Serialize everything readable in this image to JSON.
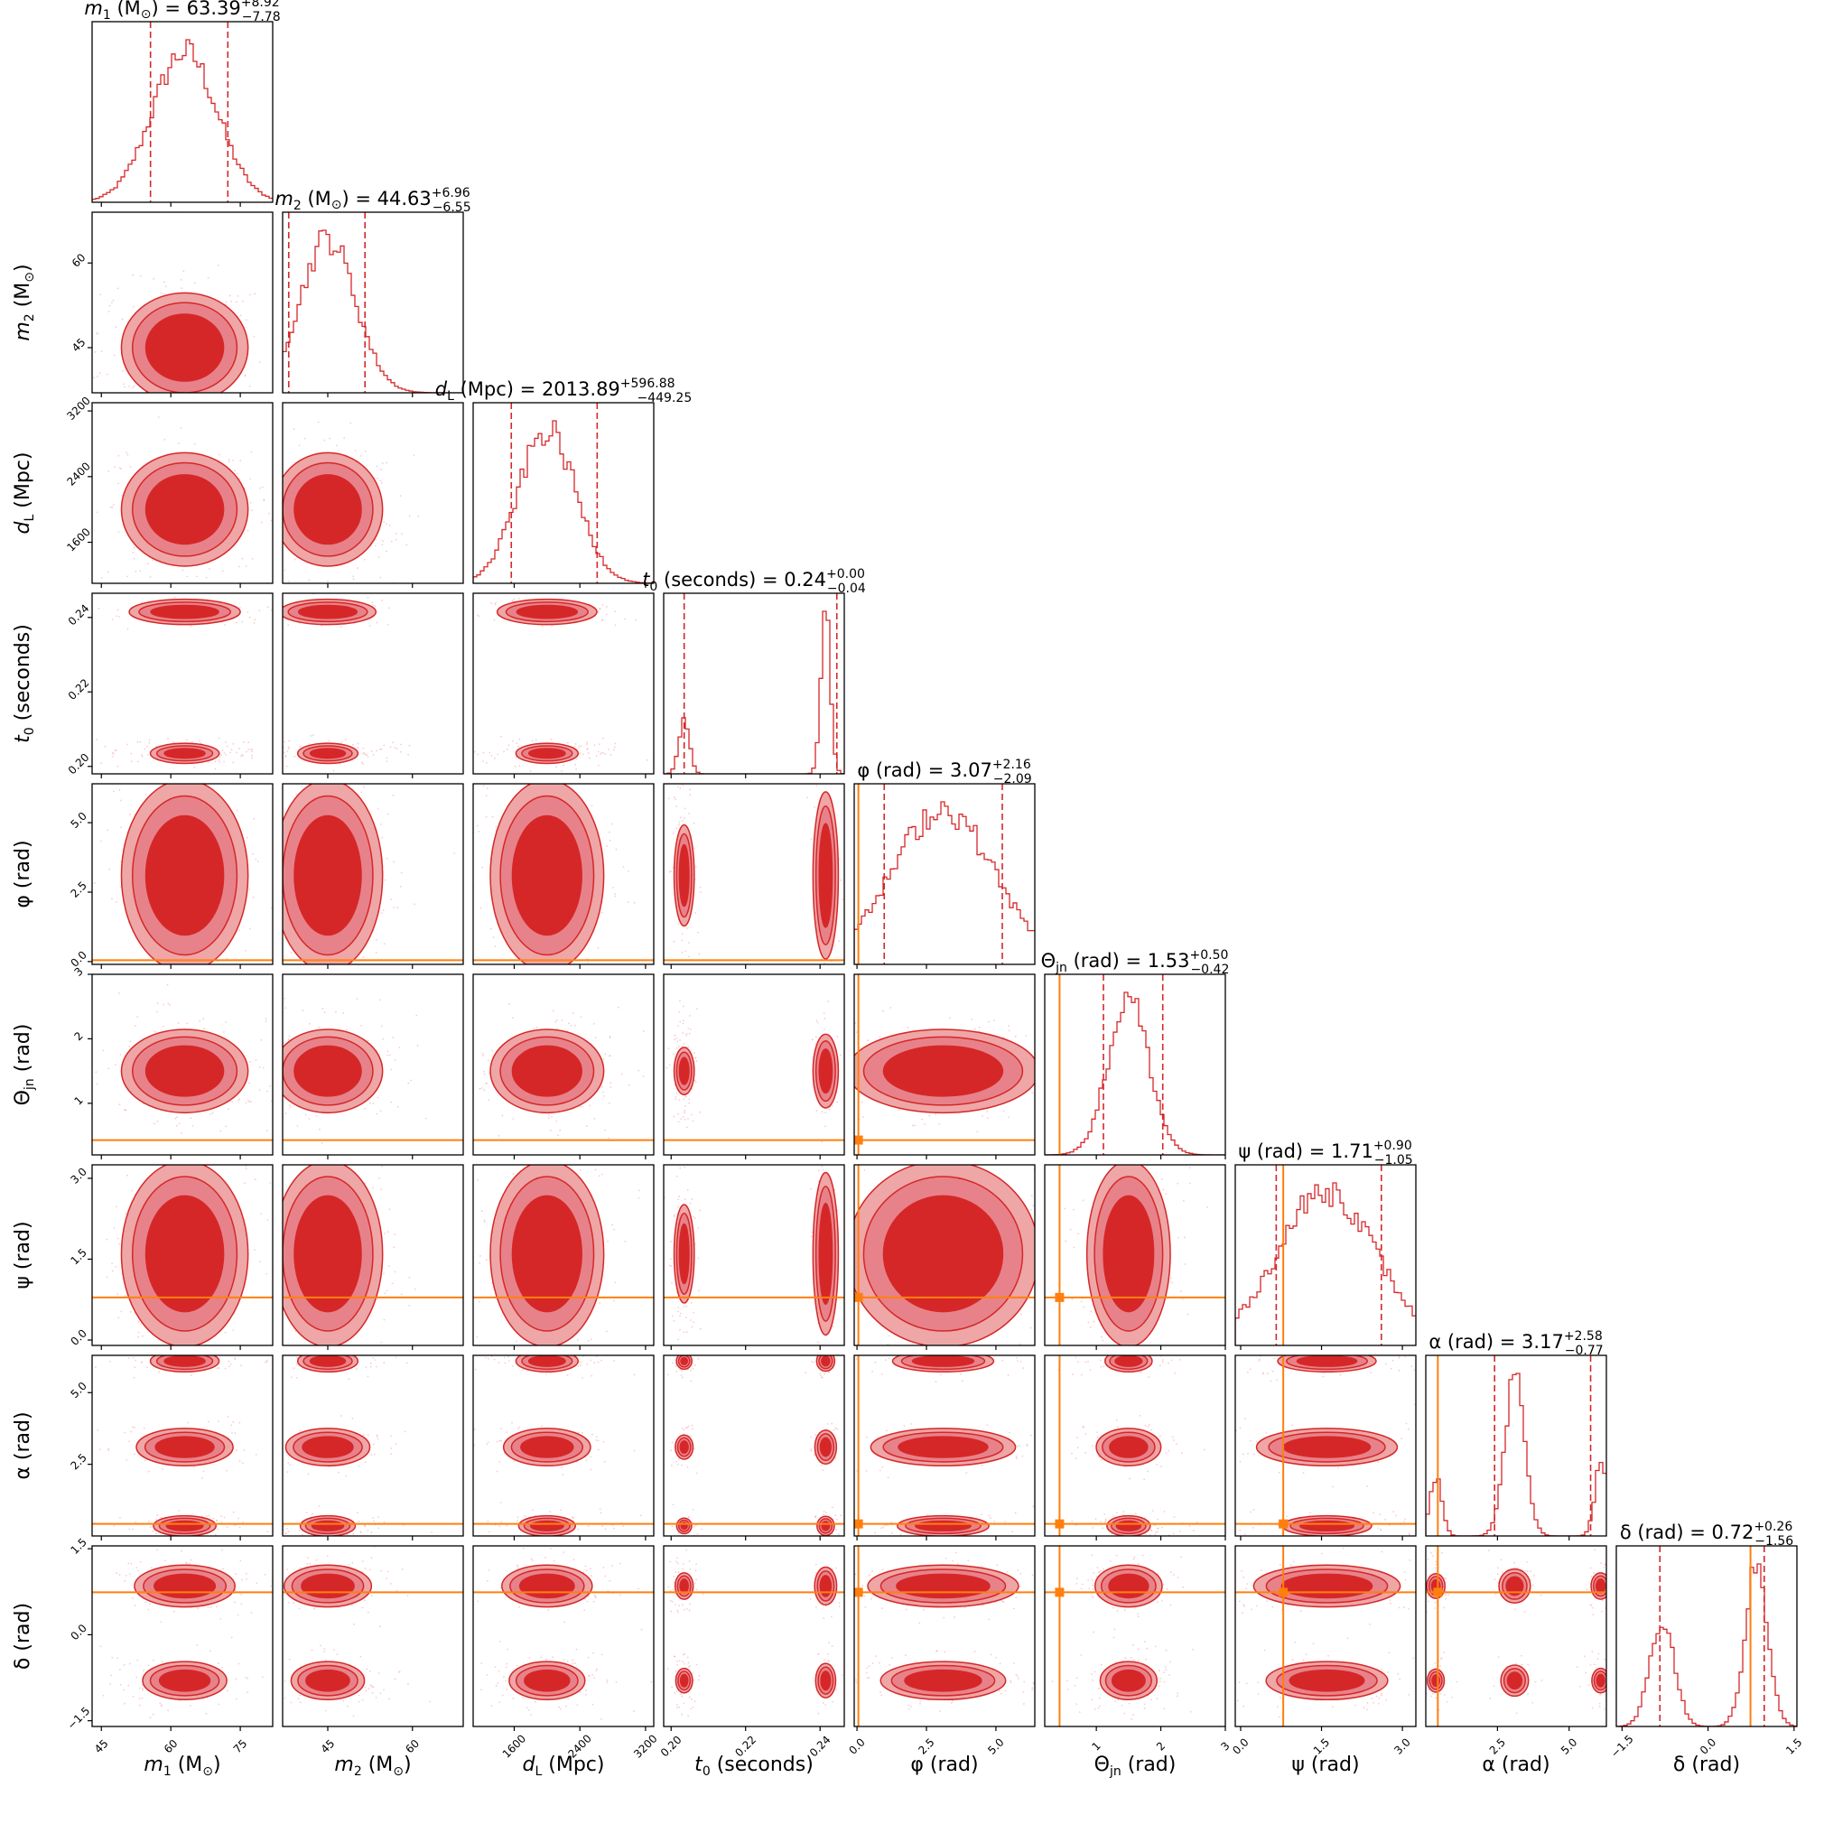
{
  "chart_data": {
    "type": "corner",
    "description_colors": {
      "posterior": "#d62728",
      "posterior_light": "#eea6a7",
      "truth": "#ff7f0e",
      "frame": "#000000"
    },
    "parameters": [
      {
        "key": "m1",
        "label": "m_1 (M_⊙)",
        "sym": "m",
        "sub": "1",
        "unit": "M",
        "sun": true,
        "range": [
          43,
          82
        ],
        "ticks": [
          45,
          60,
          75
        ],
        "ticklabels": [
          "45",
          "60",
          "75"
        ],
        "title": {
          "value": "63.39",
          "plus": "+8.92",
          "minus": "−7.78"
        },
        "quantiles": [
          55.61,
          72.31
        ]
      },
      {
        "key": "m2",
        "label": "m_2 (M_⊙)",
        "sym": "m",
        "sub": "2",
        "unit": "M",
        "sun": true,
        "range": [
          37,
          69
        ],
        "ticks": [
          45,
          60
        ],
        "ticklabels": [
          "45",
          "60"
        ],
        "title": {
          "value": "44.63",
          "plus": "+6.96",
          "minus": "−6.55"
        },
        "quantiles": [
          38.08,
          51.59
        ]
      },
      {
        "key": "dL",
        "label": "d_L (Mpc)",
        "sym": "d",
        "sub": "L",
        "unit": "Mpc",
        "range": [
          1100,
          3300
        ],
        "ticks": [
          1600,
          2400,
          3200
        ],
        "ticklabels": [
          "1600",
          "2400",
          "3200"
        ],
        "title": {
          "value": "2013.89",
          "plus": "+596.88",
          "minus": "−449.25"
        },
        "quantiles": [
          1564.64,
          2610.77
        ]
      },
      {
        "key": "t0",
        "label": "t_0 (seconds)",
        "sym": "t",
        "sub": "0",
        "unit": "seconds",
        "range": [
          0.198,
          0.2465
        ],
        "ticks": [
          0.2,
          0.22,
          0.24
        ],
        "ticklabels": [
          "0.20",
          "0.22",
          "0.24"
        ],
        "title": {
          "value": "0.24",
          "plus": "+0.00",
          "minus": "−0.04"
        },
        "quantiles": [
          0.2035,
          0.2445
        ]
      },
      {
        "key": "phi",
        "label": "φ (rad)",
        "sym": "φ",
        "sub": "",
        "unit": "rad",
        "range": [
          -0.1,
          6.4
        ],
        "ticks": [
          0.0,
          2.5,
          5.0
        ],
        "ticklabels": [
          "0.0",
          "2.5",
          "5.0"
        ],
        "title": {
          "value": "3.07",
          "plus": "+2.16",
          "minus": "−2.09"
        },
        "quantiles": [
          0.98,
          5.23
        ],
        "truth": 0.05
      },
      {
        "key": "theta",
        "label": "Θ_jn (rad)",
        "sym": "Θ",
        "sub": "jn",
        "unit": "rad",
        "range": [
          0.2,
          3.0
        ],
        "ticks": [
          1,
          2,
          3
        ],
        "ticklabels": [
          "1",
          "2",
          "3"
        ],
        "title": {
          "value": "1.53",
          "plus": "+0.50",
          "minus": "−0.42"
        },
        "quantiles": [
          1.11,
          2.03
        ],
        "truth": 0.43
      },
      {
        "key": "psi",
        "label": "ψ (rad)",
        "sym": "ψ",
        "sub": "",
        "unit": "rad",
        "range": [
          -0.1,
          3.25
        ],
        "ticks": [
          0.0,
          1.5,
          3.0
        ],
        "ticklabels": [
          "0.0",
          "1.5",
          "3.0"
        ],
        "title": {
          "value": "1.71",
          "plus": "+0.90",
          "minus": "−1.05"
        },
        "quantiles": [
          0.66,
          2.61
        ],
        "truth": 0.79
      },
      {
        "key": "alpha",
        "label": "α (rad)",
        "sym": "α",
        "sub": "",
        "unit": "rad",
        "range": [
          0.0,
          6.3
        ],
        "ticks": [
          2.5,
          5.0
        ],
        "ticklabels": [
          "2.5",
          "5.0"
        ],
        "title": {
          "value": "3.17",
          "plus": "+2.58",
          "minus": "−0.77"
        },
        "quantiles": [
          2.4,
          5.75
        ],
        "truth": 0.42
      },
      {
        "key": "delta",
        "label": "δ (rad)",
        "sym": "δ",
        "sub": "",
        "unit": "rad",
        "range": [
          -1.6,
          1.55
        ],
        "ticks": [
          -1.5,
          0.0,
          1.5
        ],
        "ticklabels": [
          "−1.5",
          "0.0",
          "1.5"
        ],
        "title": {
          "value": "0.72",
          "plus": "+0.26",
          "minus": "−1.56"
        },
        "quantiles": [
          -0.84,
          0.98
        ],
        "truth": 0.74
      }
    ]
  }
}
